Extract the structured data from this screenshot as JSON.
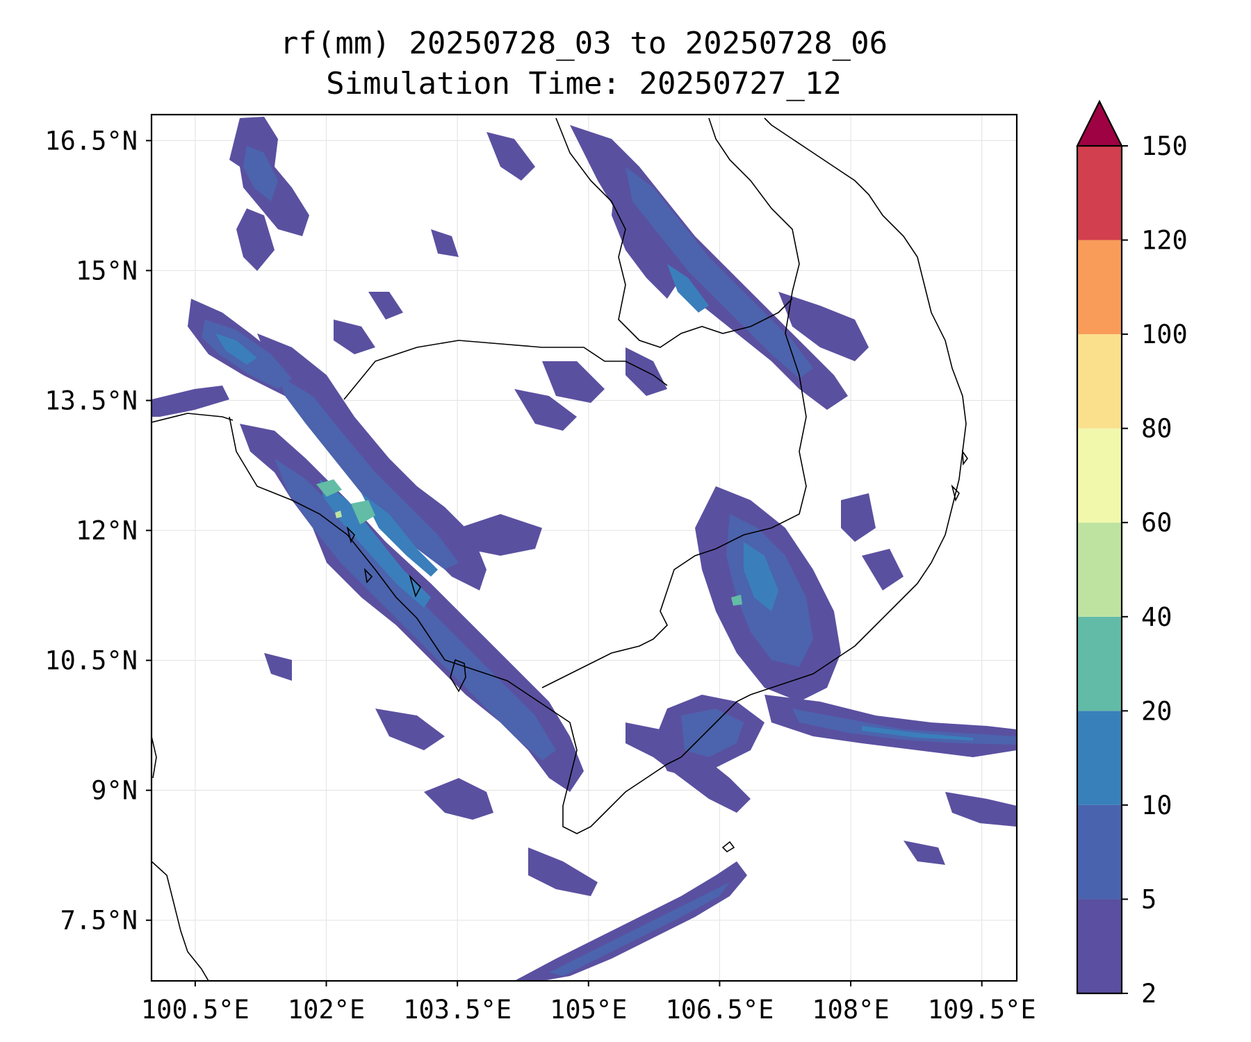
{
  "title": {
    "line1": "rf(mm) 20250728_03 to 20250728_06",
    "line2": "Simulation Time: 20250727_12"
  },
  "map": {
    "variable": "rf(mm)",
    "lon_range": [
      100.0,
      109.9
    ],
    "lat_range": [
      6.8,
      16.8
    ],
    "gridlines": true,
    "lon_ticks": [
      {
        "value": 100.5,
        "label": "100.5°E"
      },
      {
        "value": 102,
        "label": "102°E"
      },
      {
        "value": 103.5,
        "label": "103.5°E"
      },
      {
        "value": 105,
        "label": "105°E"
      },
      {
        "value": 106.5,
        "label": "106.5°E"
      },
      {
        "value": 108,
        "label": "108°E"
      },
      {
        "value": 109.5,
        "label": "109.5°E"
      }
    ],
    "lat_ticks": [
      {
        "value": 16.5,
        "label": "16.5°N"
      },
      {
        "value": 15,
        "label": "15°N"
      },
      {
        "value": 13.5,
        "label": "13.5°N"
      },
      {
        "value": 12,
        "label": "12°N"
      },
      {
        "value": 10.5,
        "label": "10.5°N"
      },
      {
        "value": 9,
        "label": "9°N"
      },
      {
        "value": 7.5,
        "label": "7.5°N"
      }
    ],
    "colors": {
      "c2_5": "#5a50a0",
      "c5_10": "#4c63ad",
      "c10_20": "#3a7fbb",
      "c20_40": "#63bca5",
      "c40_60": "#bde3a0",
      "coast": "#000000",
      "grid": "#e6e6e6"
    }
  },
  "colorbar": {
    "levels": [
      {
        "value": "2",
        "color": "#5a4fa0"
      },
      {
        "value": "5",
        "color": "#4a63ae"
      },
      {
        "value": "10",
        "color": "#3880ba"
      },
      {
        "value": "20",
        "color": "#62bba7"
      },
      {
        "value": "40",
        "color": "#bee3a1"
      },
      {
        "value": "60",
        "color": "#f1f8ac"
      },
      {
        "value": "80",
        "color": "#fae08c"
      },
      {
        "value": "100",
        "color": "#f99c5a"
      },
      {
        "value": "120",
        "color": "#d23f4e"
      },
      {
        "value": "150",
        "color": "#9e0242"
      }
    ],
    "extend": "max"
  }
}
